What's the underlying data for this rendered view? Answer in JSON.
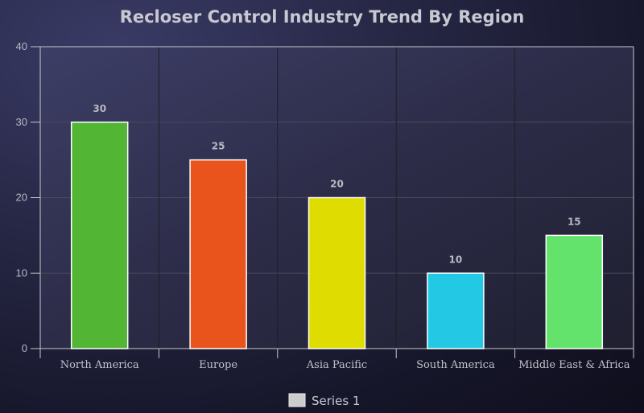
{
  "chart_data": {
    "type": "bar",
    "title": "Recloser Control Industry Trend By Region",
    "xlabel": "",
    "ylabel": "",
    "categories": [
      "North America",
      "Europe",
      "Asia Pacific",
      "South America",
      "Middle East & Africa"
    ],
    "series": [
      {
        "name": "Series 1",
        "values": [
          30,
          25,
          20,
          10,
          15
        ],
        "colors": [
          "#52b534",
          "#e8541c",
          "#dedc00",
          "#22c8e4",
          "#64e36c"
        ]
      }
    ],
    "ylim": [
      0,
      40
    ],
    "yticks": [
      0,
      10,
      20,
      30,
      40
    ],
    "grid": true,
    "data_labels": true,
    "legend_position": "bottom-center",
    "legend_swatch_color": "#cccccc"
  }
}
